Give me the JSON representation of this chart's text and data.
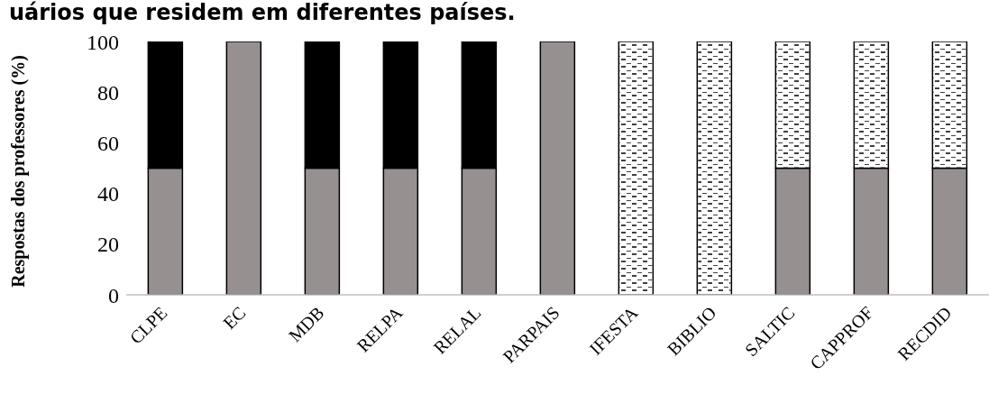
{
  "chart_data": {
    "type": "bar",
    "stacked": true,
    "title": "uários que residem em diferentes países.",
    "ylabel": "Respostas dos professores (%)",
    "categories": [
      "CLPE",
      "EC",
      "MDB",
      "RELPA",
      "RELAL",
      "PARPAIS",
      "IFESTA",
      "BIBLIO",
      "SALTIC",
      "CAPPROF",
      "RECDID"
    ],
    "series": [
      {
        "color": "#969190",
        "values": [
          50,
          100,
          50,
          50,
          50,
          100,
          0,
          0,
          50,
          50,
          50
        ]
      },
      {
        "color": "#000000",
        "values": [
          50,
          0,
          50,
          50,
          50,
          0,
          0,
          0,
          0,
          0,
          0
        ]
      },
      {
        "color": "#ffffff",
        "values": [
          0,
          0,
          0,
          0,
          0,
          0,
          100,
          100,
          50,
          50,
          50
        ]
      }
    ],
    "ylim": [
      0,
      100
    ],
    "yticks": [
      0,
      20,
      40,
      60,
      80,
      100
    ],
    "grid": false,
    "legend": false
  }
}
